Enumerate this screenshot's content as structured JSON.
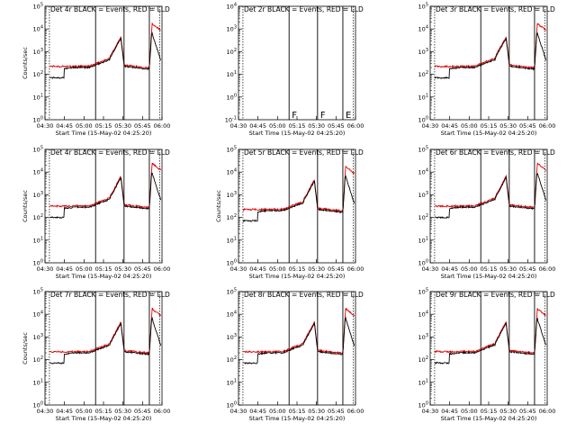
{
  "colors": {
    "events": "#000000",
    "lld": "#e00000",
    "background": "#ffffff"
  },
  "chart_data": [
    {
      "type": "line",
      "panel": "det-4r",
      "title": "Det 4r BLACK = Events, RED = LLD",
      "has_data": true,
      "variant": "a",
      "xlabel": "Start Time (15-May-02 04:25:20)",
      "ylabel": "Counts/sec",
      "x_ticks": [
        "04:30",
        "04:45",
        "05:00",
        "05:15",
        "05:30",
        "05:45",
        "06:00"
      ],
      "y_ticks": [
        "10^0",
        "10^1",
        "10^2",
        "10^3",
        "10^4",
        "10^5"
      ],
      "xlim_minutes": [
        28,
        65
      ],
      "ylim_log10": [
        0,
        5
      ],
      "markers": [
        {
          "t": 44,
          "letter": ""
        },
        {
          "t": 53,
          "letter": ""
        },
        {
          "t": 61,
          "letter": ""
        }
      ],
      "series": [
        {
          "name": "Events"
        },
        {
          "name": "LLD"
        }
      ]
    },
    {
      "type": "line",
      "panel": "det-2r",
      "title": "Det 2r BLACK = Events, RED = LLD",
      "has_data": false,
      "variant": "none",
      "xlabel": "Start Time (15-May-02 04:25:20)",
      "ylabel": "",
      "x_ticks": [
        "04:30",
        "04:45",
        "05:00",
        "05:15",
        "05:30",
        "05:45",
        "06:00"
      ],
      "y_ticks": [
        "10^-1",
        "10^0",
        "10^1",
        "10^2",
        "10^3",
        "10^4"
      ],
      "xlim_minutes": [
        28,
        65
      ],
      "ylim_log10": [
        -1,
        4
      ],
      "markers": [
        {
          "t": 44,
          "letter": "F"
        },
        {
          "t": 53,
          "letter": "F"
        },
        {
          "t": 61,
          "letter": "E"
        }
      ],
      "series": []
    },
    {
      "type": "line",
      "panel": "det-3r",
      "title": "Det 3r BLACK = Events, RED = LLD",
      "has_data": true,
      "variant": "a",
      "xlabel": "Start Time (15-May-02 04:25:20)",
      "ylabel": "",
      "x_ticks": [
        "04:30",
        "04:45",
        "05:00",
        "05:15",
        "05:30",
        "05:45",
        "06:00"
      ],
      "y_ticks": [
        "10^0",
        "10^1",
        "10^2",
        "10^3",
        "10^4",
        "10^5"
      ],
      "xlim_minutes": [
        28,
        65
      ],
      "ylim_log10": [
        0,
        5
      ],
      "markers": [
        {
          "t": 44,
          "letter": ""
        },
        {
          "t": 53,
          "letter": ""
        },
        {
          "t": 61,
          "letter": ""
        }
      ],
      "series": [
        {
          "name": "Events"
        },
        {
          "name": "LLD"
        }
      ]
    },
    {
      "type": "line",
      "panel": "det-4r-b",
      "title": "Det 4r BLACK = Events, RED = LLD",
      "has_data": true,
      "variant": "b",
      "xlabel": "Start Time (15-May-02 04:25:20)",
      "ylabel": "Counts/sec",
      "x_ticks": [
        "04:30",
        "04:45",
        "05:00",
        "05:15",
        "05:30",
        "05:45",
        "06:00"
      ],
      "y_ticks": [
        "10^0",
        "10^1",
        "10^2",
        "10^3",
        "10^4",
        "10^5"
      ],
      "xlim_minutes": [
        28,
        65
      ],
      "ylim_log10": [
        0,
        5
      ],
      "markers": [
        {
          "t": 44,
          "letter": ""
        },
        {
          "t": 53,
          "letter": ""
        },
        {
          "t": 61,
          "letter": ""
        }
      ],
      "series": [
        {
          "name": "Events"
        },
        {
          "name": "LLD"
        }
      ]
    },
    {
      "type": "line",
      "panel": "det-5r",
      "title": "Det 5r BLACK = Events, RED = LLD",
      "has_data": true,
      "variant": "a",
      "xlabel": "Start Time (15-May-02 04:25:20)",
      "ylabel": "Counts/sec",
      "x_ticks": [
        "04:30",
        "04:45",
        "05:00",
        "05:15",
        "05:30",
        "05:45",
        "06:00"
      ],
      "y_ticks": [
        "10^0",
        "10^1",
        "10^2",
        "10^3",
        "10^4",
        "10^5"
      ],
      "xlim_minutes": [
        28,
        65
      ],
      "ylim_log10": [
        0,
        5
      ],
      "markers": [
        {
          "t": 44,
          "letter": ""
        },
        {
          "t": 53,
          "letter": ""
        },
        {
          "t": 61,
          "letter": ""
        }
      ],
      "series": [
        {
          "name": "Events"
        },
        {
          "name": "LLD"
        }
      ]
    },
    {
      "type": "line",
      "panel": "det-6r",
      "title": "Det 6r BLACK = Events, RED = LLD",
      "has_data": true,
      "variant": "b",
      "xlabel": "Start Time (15-May-02 04:25:20)",
      "ylabel": "",
      "x_ticks": [
        "04:30",
        "04:45",
        "05:00",
        "05:15",
        "05:30",
        "05:45",
        "06:00"
      ],
      "y_ticks": [
        "10^0",
        "10^1",
        "10^2",
        "10^3",
        "10^4",
        "10^5"
      ],
      "xlim_minutes": [
        28,
        65
      ],
      "ylim_log10": [
        0,
        5
      ],
      "markers": [
        {
          "t": 44,
          "letter": ""
        },
        {
          "t": 53,
          "letter": ""
        },
        {
          "t": 61,
          "letter": ""
        }
      ],
      "series": [
        {
          "name": "Events"
        },
        {
          "name": "LLD"
        }
      ]
    },
    {
      "type": "line",
      "panel": "det-7r",
      "title": "Det 7r BLACK = Events, RED = LLD",
      "has_data": true,
      "variant": "a",
      "xlabel": "Start Time (15-May-02 04:25:20)",
      "ylabel": "Counts/sec",
      "x_ticks": [
        "04:30",
        "04:45",
        "05:00",
        "05:15",
        "05:30",
        "05:45",
        "06:00"
      ],
      "y_ticks": [
        "10^0",
        "10^1",
        "10^2",
        "10^3",
        "10^4",
        "10^5"
      ],
      "xlim_minutes": [
        28,
        65
      ],
      "ylim_log10": [
        0,
        5
      ],
      "markers": [
        {
          "t": 44,
          "letter": ""
        },
        {
          "t": 53,
          "letter": ""
        },
        {
          "t": 61,
          "letter": ""
        }
      ],
      "series": [
        {
          "name": "Events"
        },
        {
          "name": "LLD"
        }
      ]
    },
    {
      "type": "line",
      "panel": "det-8r",
      "title": "Det 8r BLACK = Events, RED = LLD",
      "has_data": true,
      "variant": "a",
      "xlabel": "Start Time (15-May-02 04:25:20)",
      "ylabel": "",
      "x_ticks": [
        "04:30",
        "04:45",
        "05:00",
        "05:15",
        "05:30",
        "05:45",
        "06:00"
      ],
      "y_ticks": [
        "10^0",
        "10^1",
        "10^2",
        "10^3",
        "10^4",
        "10^5"
      ],
      "xlim_minutes": [
        28,
        65
      ],
      "ylim_log10": [
        0,
        5
      ],
      "markers": [
        {
          "t": 44,
          "letter": ""
        },
        {
          "t": 53,
          "letter": ""
        },
        {
          "t": 61,
          "letter": ""
        }
      ],
      "series": [
        {
          "name": "Events"
        },
        {
          "name": "LLD"
        }
      ]
    },
    {
      "type": "line",
      "panel": "det-9r",
      "title": "Det 9r BLACK = Events, RED = LLD",
      "has_data": true,
      "variant": "a",
      "xlabel": "Start Time (15-May-02 04:25:20)",
      "ylabel": "",
      "x_ticks": [
        "04:30",
        "04:45",
        "05:00",
        "05:15",
        "05:30",
        "05:45",
        "06:00"
      ],
      "y_ticks": [
        "10^0",
        "10^1",
        "10^2",
        "10^3",
        "10^4",
        "10^5"
      ],
      "xlim_minutes": [
        28,
        65
      ],
      "ylim_log10": [
        0,
        5
      ],
      "markers": [
        {
          "t": 44,
          "letter": ""
        },
        {
          "t": 53,
          "letter": ""
        },
        {
          "t": 61,
          "letter": ""
        }
      ],
      "series": [
        {
          "name": "Events"
        },
        {
          "name": "LLD"
        }
      ]
    }
  ]
}
